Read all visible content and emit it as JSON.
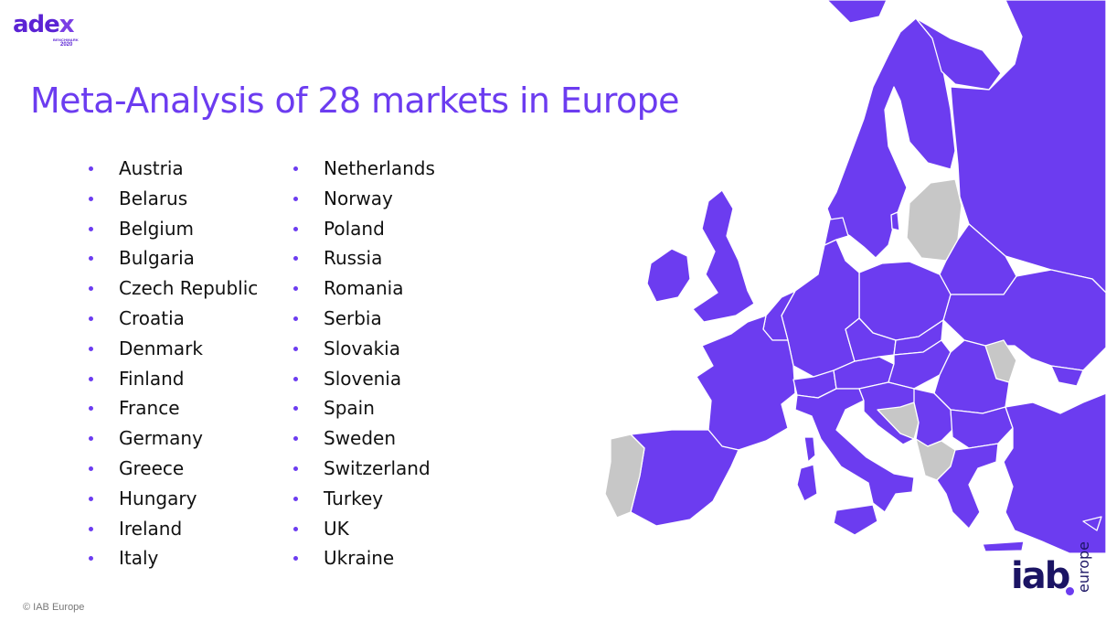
{
  "logo": {
    "wordmark_a": "ade",
    "wordmark_b": "x",
    "sub1": "BENCHMARK",
    "sub2": "2020"
  },
  "slide": {
    "title": "Meta-Analysis of 28 markets in Europe"
  },
  "markets_col1": [
    "Austria",
    "Belarus",
    "Belgium",
    "Bulgaria",
    "Czech Republic",
    "Croatia",
    "Denmark",
    "Finland",
    "France",
    "Germany",
    "Greece",
    "Hungary",
    "Ireland",
    "Italy"
  ],
  "markets_col2": [
    "Netherlands",
    "Norway",
    "Poland",
    "Russia",
    "Romania",
    "Serbia",
    "Slovakia",
    "Slovenia",
    "Spain",
    "Sweden",
    "Switzerland",
    "Turkey",
    "UK",
    "Ukraine"
  ],
  "colors": {
    "accent": "#6c3cf0",
    "included_country": "#6c3cf0",
    "excluded_country": "#c7c7c7",
    "iab_navy": "#1b1464"
  },
  "footer": {
    "copyright": "© IAB Europe"
  },
  "iab_logo": {
    "wordmark": "iab",
    "suffix": "europe"
  }
}
